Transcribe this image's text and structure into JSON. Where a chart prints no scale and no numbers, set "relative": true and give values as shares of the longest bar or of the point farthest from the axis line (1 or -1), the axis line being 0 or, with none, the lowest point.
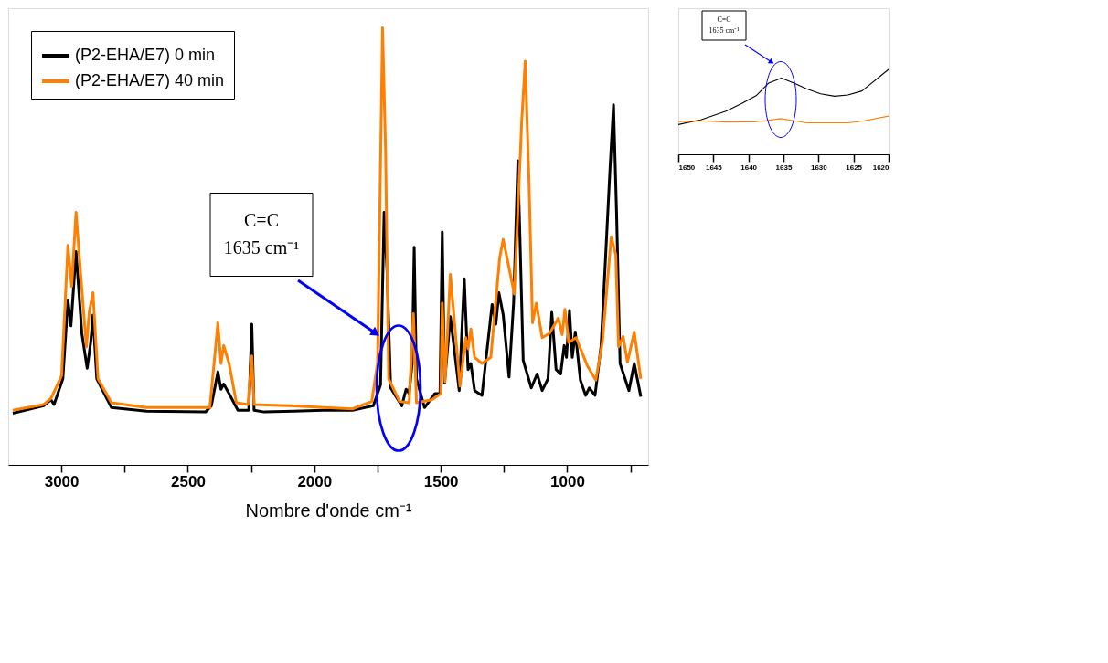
{
  "chart_data": [
    {
      "type": "line",
      "relative": true,
      "xlabel": "Nombre d'onde cm⁻¹",
      "xlim": [
        3210,
        680
      ],
      "xticks": [
        3000,
        {
          "value": 2750,
          "label": null
        },
        2500,
        {
          "value": 2250,
          "label": null
        },
        2000,
        {
          "value": 1750,
          "label": null
        },
        1500,
        {
          "value": 1250,
          "label": null
        },
        1000,
        {
          "value": 750,
          "label": null
        }
      ],
      "legend": "top left",
      "tick_labels": "x",
      "annotations": [
        "C=C\n1635 cm⁻¹"
      ],
      "series": [
        {
          "name": "(P2-EHA/E7) 0 min",
          "color": "#000000",
          "x": [
            3192,
            3070,
            3041,
            3029,
            2994,
            2974,
            2962,
            2942,
            2919,
            2898,
            2884,
            2875,
            2860,
            2802,
            2663,
            2430,
            2407,
            2381,
            2369,
            2358,
            2337,
            2302,
            2259,
            2247,
            2238,
            2198,
            2081,
            1965,
            1849,
            1767,
            1738,
            1724,
            1712,
            1698,
            1654,
            1637,
            1625,
            1613,
            1605,
            1596,
            1564,
            1523,
            1503,
            1494,
            1485,
            1462,
            1427,
            1407,
            1392,
            1381,
            1366,
            1337,
            1297,
            1282,
            1270,
            1253,
            1230,
            1212,
            1195,
            1174,
            1142,
            1119,
            1099,
            1076,
            1061,
            1044,
            1026,
            1012,
            1003,
            991,
            980,
            968,
            948,
            927,
            913,
            890,
            866,
            831,
            817,
            805,
            791,
            756,
            735,
            709
          ],
          "values": [
            0.118,
            0.135,
            0.149,
            0.138,
            0.197,
            0.377,
            0.318,
            0.488,
            0.301,
            0.221,
            0.28,
            0.343,
            0.197,
            0.131,
            0.123,
            0.121,
            0.135,
            0.213,
            0.173,
            0.185,
            0.163,
            0.125,
            0.125,
            0.322,
            0.125,
            0.121,
            0.123,
            0.125,
            0.125,
            0.135,
            0.183,
            0.578,
            0.439,
            0.176,
            0.135,
            0.173,
            0.163,
            0.232,
            0.498,
            0.197,
            0.131,
            0.163,
            0.163,
            0.533,
            0.187,
            0.339,
            0.17,
            0.426,
            0.218,
            0.232,
            0.17,
            0.159,
            0.367,
            0.322,
            0.394,
            0.343,
            0.201,
            0.37,
            0.696,
            0.239,
            0.176,
            0.208,
            0.17,
            0.197,
            0.349,
            0.218,
            0.208,
            0.273,
            0.246,
            0.353,
            0.246,
            0.304,
            0.194,
            0.159,
            0.176,
            0.159,
            0.273,
            0.675,
            0.824,
            0.578,
            0.232,
            0.17,
            0.232,
            0.156
          ]
        },
        {
          "name": "(P2-EHA/E7) 40 min",
          "color": "#ff7f00",
          "x": [
            3192,
            3070,
            3041,
            2999,
            2974,
            2959,
            2942,
            2924,
            2901,
            2890,
            2875,
            2855,
            2802,
            2663,
            2413,
            2381,
            2369,
            2358,
            2337,
            2308,
            2262,
            2247,
            2238,
            2081,
            1849,
            1773,
            1750,
            1730,
            1718,
            1706,
            1663,
            1625,
            1608,
            1596,
            1535,
            1500,
            1494,
            1483,
            1462,
            1424,
            1401,
            1392,
            1381,
            1366,
            1337,
            1302,
            1267,
            1253,
            1209,
            1180,
            1166,
            1151,
            1137,
            1122,
            1099,
            1070,
            1035,
            1020,
            1009,
            994,
            965,
            919,
            887,
            861,
            826,
            808,
            797,
            779,
            762,
            735,
            709
          ],
          "values": [
            0.125,
            0.138,
            0.152,
            0.204,
            0.502,
            0.408,
            0.578,
            0.439,
            0.27,
            0.349,
            0.394,
            0.197,
            0.142,
            0.131,
            0.131,
            0.325,
            0.232,
            0.273,
            0.232,
            0.142,
            0.138,
            0.249,
            0.138,
            0.135,
            0.128,
            0.145,
            0.232,
            1.0,
            0.716,
            0.197,
            0.145,
            0.142,
            0.346,
            0.142,
            0.149,
            0.163,
            0.37,
            0.19,
            0.436,
            0.18,
            0.291,
            0.266,
            0.311,
            0.246,
            0.232,
            0.246,
            0.474,
            0.516,
            0.391,
            0.785,
            0.924,
            0.647,
            0.325,
            0.37,
            0.291,
            0.301,
            0.336,
            0.298,
            0.356,
            0.28,
            0.291,
            0.225,
            0.194,
            0.28,
            0.522,
            0.481,
            0.27,
            0.294,
            0.235,
            0.304,
            0.197
          ]
        }
      ]
    },
    {
      "type": "line",
      "relative": true,
      "xlim": [
        1650,
        1620
      ],
      "xticks": [
        1650,
        1645,
        1640,
        1635,
        1630,
        1625,
        1620
      ],
      "tick_labels": "x",
      "annotations": [
        "C=C\n1635 cm⁻¹"
      ],
      "series": [
        {
          "color": "#000000",
          "x": [
            1650,
            1646.8,
            1643.2,
            1641.0,
            1638.9,
            1637.1,
            1635.3,
            1633.5,
            1631.7,
            1629.7,
            1627.7,
            1625.8,
            1623.8,
            1620
          ],
          "values": [
            0.351,
            0.406,
            0.509,
            0.596,
            0.69,
            0.839,
            0.898,
            0.839,
            0.772,
            0.713,
            0.684,
            0.699,
            0.746,
            1.0
          ]
        },
        {
          "color": "#ff7f00",
          "x": [
            1650,
            1646.8,
            1643.2,
            1639.2,
            1637.4,
            1635.4,
            1633.5,
            1631.7,
            1625.8,
            1623.8,
            1620
          ],
          "values": [
            0.386,
            0.395,
            0.38,
            0.383,
            0.398,
            0.421,
            0.395,
            0.371,
            0.371,
            0.389,
            0.45
          ]
        }
      ]
    }
  ]
}
